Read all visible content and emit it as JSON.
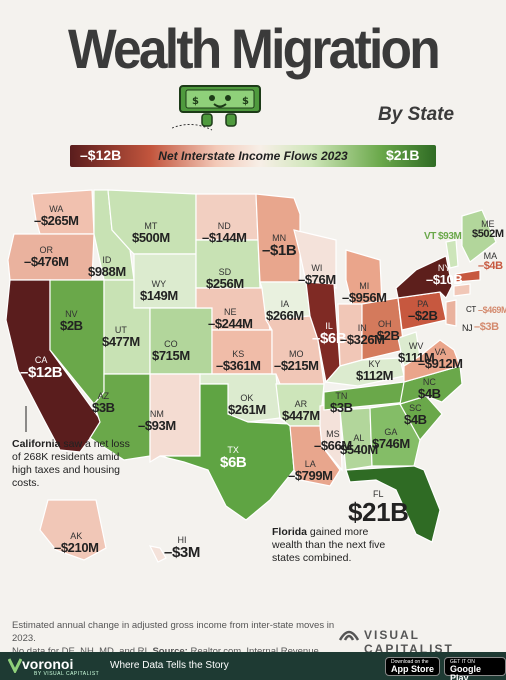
{
  "title": "Wealth Migration",
  "subtitle": "By State",
  "legend": {
    "min_label": "–$12B",
    "max_label": "$21B",
    "label": "Net Interstate Income Flows 2023",
    "colors": [
      "#5a1d1d",
      "#c2553d",
      "#f3c9b8",
      "#f7efe7",
      "#cfe6b9",
      "#6aa84a",
      "#2f6b24"
    ]
  },
  "states": [
    {
      "code": "WA",
      "value": "–$265M"
    },
    {
      "code": "OR",
      "value": "–$476M"
    },
    {
      "code": "CA",
      "value": "–$12B"
    },
    {
      "code": "NV",
      "value": "$2B"
    },
    {
      "code": "ID",
      "value": "$988M"
    },
    {
      "code": "MT",
      "value": "$500M"
    },
    {
      "code": "WY",
      "value": "$149M"
    },
    {
      "code": "UT",
      "value": "$477M"
    },
    {
      "code": "AZ",
      "value": "$3B"
    },
    {
      "code": "CO",
      "value": "$715M"
    },
    {
      "code": "NM",
      "value": "–$93M"
    },
    {
      "code": "ND",
      "value": "–$144M"
    },
    {
      "code": "SD",
      "value": "$256M"
    },
    {
      "code": "NE",
      "value": "–$244M"
    },
    {
      "code": "KS",
      "value": "–$361M"
    },
    {
      "code": "OK",
      "value": "$261M"
    },
    {
      "code": "TX",
      "value": "$6B"
    },
    {
      "code": "MN",
      "value": "–$1B"
    },
    {
      "code": "IA",
      "value": "$266M"
    },
    {
      "code": "MO",
      "value": "–$215M"
    },
    {
      "code": "AR",
      "value": "$447M"
    },
    {
      "code": "LA",
      "value": "–$799M"
    },
    {
      "code": "WI",
      "value": "–$76M"
    },
    {
      "code": "IL",
      "value": "–$6B"
    },
    {
      "code": "MS",
      "value": "–$66M"
    },
    {
      "code": "MI",
      "value": "–$956M"
    },
    {
      "code": "IN",
      "value": "–$326M"
    },
    {
      "code": "KY",
      "value": "$112M"
    },
    {
      "code": "TN",
      "value": "$3B"
    },
    {
      "code": "AL",
      "value": "$540M"
    },
    {
      "code": "OH",
      "value": "–$2B"
    },
    {
      "code": "WV",
      "value": "$111M"
    },
    {
      "code": "GA",
      "value": "$746M"
    },
    {
      "code": "FL",
      "value": "$21B"
    },
    {
      "code": "SC",
      "value": "$4B"
    },
    {
      "code": "NC",
      "value": "$4B"
    },
    {
      "code": "VA",
      "value": "–$912M"
    },
    {
      "code": "PA",
      "value": "–$2B"
    },
    {
      "code": "NY",
      "value": "–$10B"
    },
    {
      "code": "VT",
      "value": "$93M"
    },
    {
      "code": "ME",
      "value": "$502M"
    },
    {
      "code": "MA",
      "value": "–$4B"
    },
    {
      "code": "CT",
      "value": "–$469M"
    },
    {
      "code": "NJ",
      "value": "–$3B"
    },
    {
      "code": "AK",
      "value": "–$210M"
    },
    {
      "code": "HI",
      "value": "–$3M"
    }
  ],
  "notes": {
    "california": {
      "bold": "California",
      "text": " saw a net loss of 268K residents amid high taxes and housing costs."
    },
    "florida": {
      "bold": "Florida",
      "text": " gained more wealth than the next five states combined."
    }
  },
  "footnote": {
    "line1": "Estimated annual change in adjusted gross income from inter-state moves in 2023.",
    "line2": "No data for DE, NH, MD, and RI.",
    "source_label": "Source:",
    "source": " Realtor.com, Internal Revenue Service"
  },
  "brand": "VISUAL CAPITALIST",
  "footer": {
    "logo": "voronoi",
    "logo_sub": "BY VISUAL CAPITALIST",
    "tagline": "Where Data Tells the Story",
    "appstore_top": "Download on the",
    "appstore": "App Store",
    "googleplay_top": "GET IT ON",
    "googleplay": "Google Play"
  }
}
